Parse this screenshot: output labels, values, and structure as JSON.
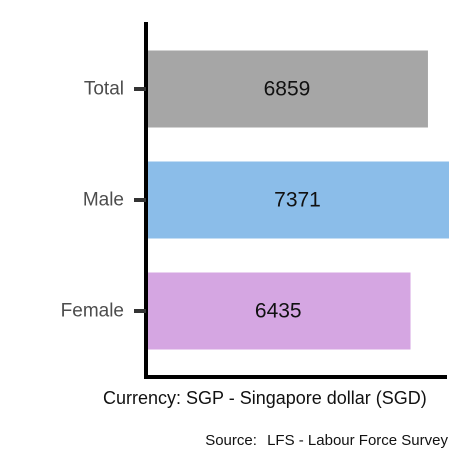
{
  "chart_data": {
    "type": "bar",
    "orientation": "horizontal",
    "categories": [
      "Total",
      "Male",
      "Female"
    ],
    "values": [
      6859,
      7371,
      6435
    ],
    "colors": [
      "#a6a6a6",
      "#8bbde9",
      "#d5a6e2"
    ],
    "value_labels": [
      "6859",
      "7371",
      "6435"
    ],
    "xlabel": "Currency: SGP - Singapore dollar (SGD)",
    "xlim": [
      0,
      7371
    ],
    "grid": false,
    "legend": "none"
  },
  "source": {
    "label": "Source:",
    "text": "LFS - Labour Force Survey"
  }
}
